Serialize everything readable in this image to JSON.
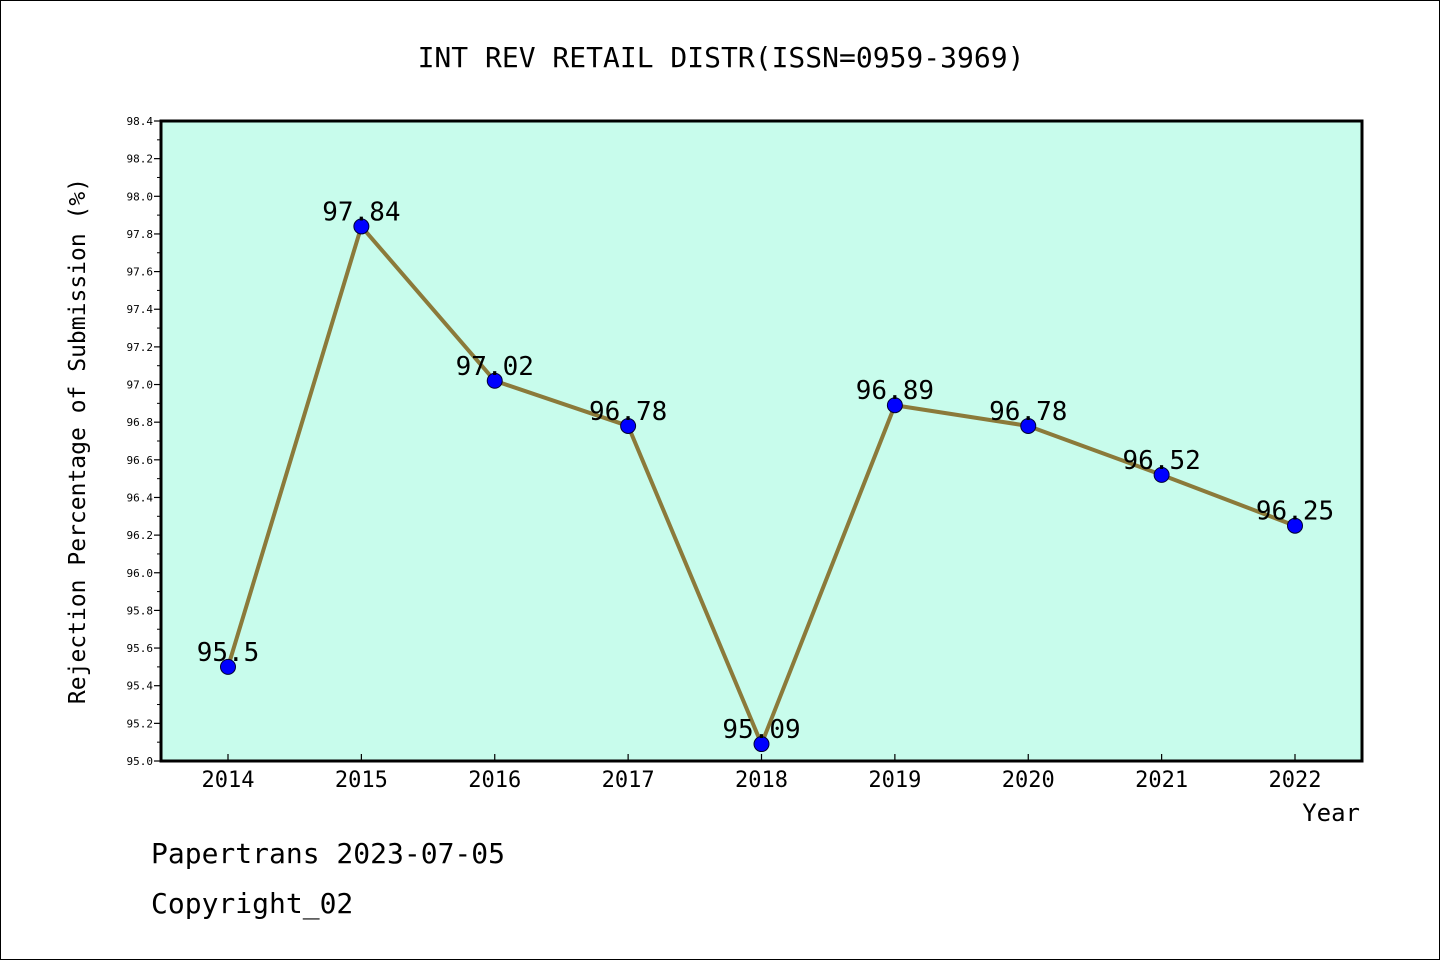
{
  "chart_data": {
    "type": "line",
    "title": "INT REV RETAIL DISTR(ISSN=0959-3969)",
    "xlabel": "Year",
    "ylabel": "Rejection Percentage of Submission (%)",
    "categories": [
      "2014",
      "2015",
      "2016",
      "2017",
      "2018",
      "2019",
      "2020",
      "2021",
      "2022"
    ],
    "values": [
      95.5,
      97.84,
      97.02,
      96.78,
      95.09,
      96.89,
      96.78,
      96.52,
      96.25
    ],
    "data_labels": [
      "95.5",
      "97.84",
      "97.02",
      "96.78",
      "95.09",
      "96.89",
      "96.78",
      "96.52",
      "96.25"
    ],
    "ylim": [
      95.0,
      98.4
    ],
    "y_ticks": [
      "95.0",
      "95.2",
      "95.4",
      "95.6",
      "95.8",
      "96.0",
      "96.2",
      "96.4",
      "96.6",
      "96.8",
      "97.0",
      "97.2",
      "97.4",
      "97.6",
      "97.8",
      "98.0",
      "98.2",
      "98.4"
    ],
    "grid": false,
    "colors": {
      "plot_background": "#c8fcec",
      "line": "#8b7a3a",
      "marker": "#0000ff"
    }
  },
  "footer": {
    "source": "Papertrans 2023-07-05",
    "copyright": "Copyright_02"
  }
}
